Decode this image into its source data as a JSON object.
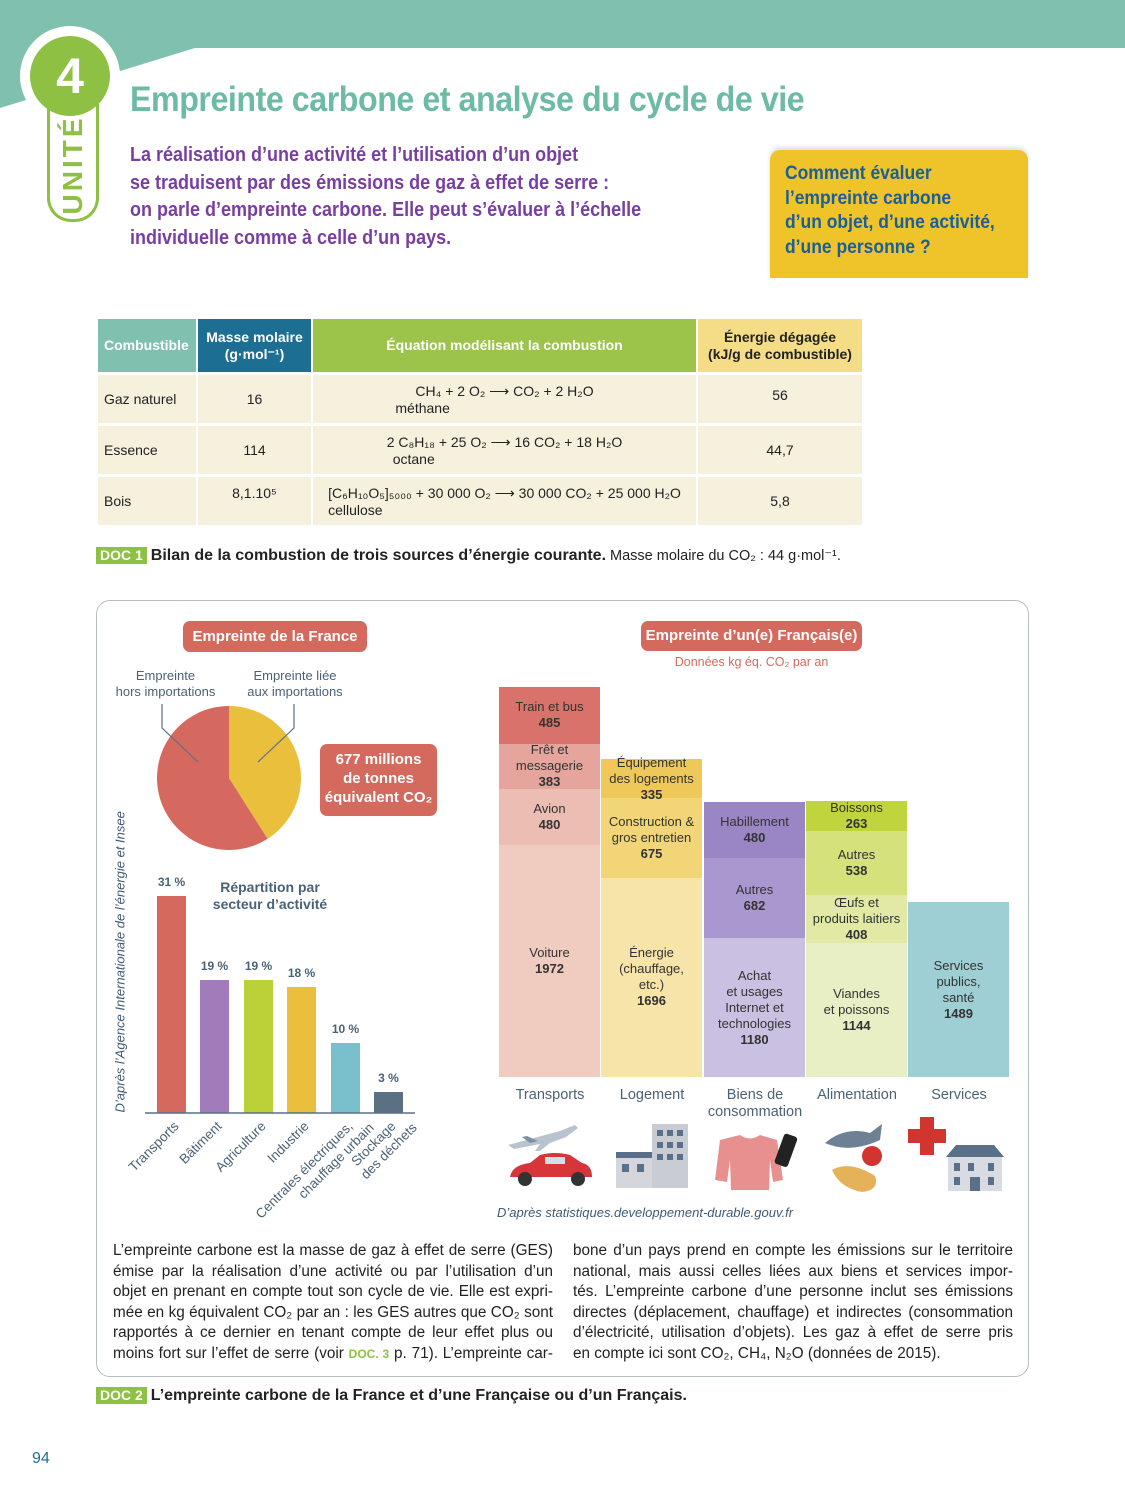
{
  "header": {
    "unit_number": "4",
    "unit_label": "UNITÉ",
    "title": "Empreinte carbone et analyse du cycle de vie",
    "intro_lines": [
      "La réalisation d’une activité et l’utilisation d’un objet",
      "se traduisent par des émissions de gaz à effet de serre :",
      "on parle d’empreinte carbone. Elle peut s’évaluer à l’échelle",
      "individuelle comme à celle d’un pays."
    ],
    "question_lines": [
      "Comment évaluer",
      "l’empreinte carbone",
      "d’un objet, d’une activité,",
      "d’une personne ?"
    ]
  },
  "doc1": {
    "headers": [
      "Combustible",
      "Masse molaire\n(g·mol⁻¹)",
      "Équation modélisant la combustion",
      "Énergie dégagée\n(kJ/g de combustible)"
    ],
    "header_colors": [
      "#80c0ae",
      "#1d6e93",
      "#9cc44a",
      "#f4dd86"
    ],
    "rows": [
      {
        "fuel": "Gaz naturel",
        "mass": "16",
        "equation": "CH₄ + 2 O₂ ⟶ CO₂ + 2 H₂O",
        "name": "méthane",
        "energy": "56"
      },
      {
        "fuel": "Essence",
        "mass": "114",
        "equation": "2 C₈H₁₈ + 25 O₂ ⟶ 16 CO₂ + 18 H₂O",
        "name": "octane",
        "energy": "44,7"
      },
      {
        "fuel": "Bois",
        "mass": "8,1.10⁵",
        "equation": "[C₆H₁₀O₅]₅₀₀₀ + 30 000 O₂ ⟶ 30 000 CO₂ + 25 000 H₂O",
        "name": "cellulose",
        "energy": "5,8"
      }
    ],
    "tag": "DOC 1",
    "caption_bold": "Bilan de la combustion de trois sources d’énergie courante.",
    "caption_rest": " Masse molaire du CO₂ : 44 g·mol⁻¹."
  },
  "doc2": {
    "france": {
      "title": "Empreinte de la France",
      "label_domestic": "Empreinte\nhors importations",
      "label_imports": "Empreinte liée\naux importations",
      "total": "677 millions\nde tonnes\néquivalent CO₂",
      "source": "D’après l’Agence Internationale de l’énergie et Insee"
    },
    "person": {
      "title": "Empreinte d’un(e) Français(e)",
      "subtitle": "Données kg éq. CO₂ par an",
      "source": "D’après statistiques.developpement-durable.gouv.fr"
    },
    "text_col1": [
      "L’empreinte carbone est la masse de gaz à effet de serre (GES)",
      "émise par la réalisation d’une activité ou par l’utilisation d’un",
      "objet en prenant en compte tout son cycle de vie. Elle est expri-",
      "mée en kg équivalent CO₂ par an : les GES autres que CO₂ sont",
      "rapportés à ce dernier en tenant compte de leur effet plus ou"
    ],
    "text_col1_last": {
      "before": "moins fort sur l’effet de serre (voir ",
      "link": "DOC. 3",
      "after": " p. 71). L’empreinte car-"
    },
    "text_col2": [
      "bone d’un pays prend en compte les émissions sur le territoire",
      "national, mais aussi celles liées aux biens et services impor-",
      "tés. L’empreinte carbone d’une personne inclut ses émissions",
      "directes (déplacement, chauffage) et indirectes (consommation",
      "d’électricité, utilisation d’objets). Les gaz à effet de serre pris",
      "en compte ici sont CO₂, CH₄, N₂O (données de 2015)."
    ],
    "tag": "DOC 2",
    "caption": "L’empreinte carbone de la France et d’une Française ou d’un Français."
  },
  "page_number": "94",
  "colors": {
    "teal": "#80c0ae",
    "green": "#8dc043",
    "purple": "#7a3ea3",
    "coral": "#d46a5e",
    "yellow": "#eec42a",
    "blue": "#1b5e98"
  },
  "chart_data": [
    {
      "type": "pie",
      "title": "Empreinte de la France",
      "slices": [
        {
          "name": "Empreinte hors importations",
          "value": 0.59,
          "color": "#d6695f"
        },
        {
          "name": "Empreinte liée aux importations",
          "value": 0.41,
          "color": "#e9bf3c"
        }
      ]
    },
    {
      "type": "bar",
      "title": "Répartition par secteur d’activité",
      "categories": [
        "Transports",
        "Bâtiment",
        "Agriculture",
        "Industrie",
        "Centrales électriques,\nchauffage urbain",
        "Stockage\ndes déchets"
      ],
      "values": [
        31,
        19,
        19,
        18,
        10,
        3
      ],
      "labels": [
        "31 %",
        "19 %",
        "19 %",
        "18 %",
        "10 %",
        "3 %"
      ],
      "colors": [
        "#d6695f",
        "#a27bbb",
        "#bcd137",
        "#eabf3d",
        "#79c0cc",
        "#5b7183"
      ],
      "unit": "%"
    },
    {
      "type": "stacked-bar",
      "unit": "kg éq. CO₂ par an",
      "categories": [
        {
          "name": "Transports",
          "segments": [
            {
              "label": "Voiture",
              "value": 1972,
              "color": "#f0cbc0"
            },
            {
              "label": "Avion",
              "value": 480,
              "color": "#ecbdb3"
            },
            {
              "label": "Frêt et\nmessagerie",
              "value": 383,
              "color": "#e5a49c"
            },
            {
              "label": "Train et bus",
              "value": 485,
              "color": "#d9726b"
            }
          ]
        },
        {
          "name": "Logement",
          "segments": [
            {
              "label": "Énergie\n(chauffage,\netc.)",
              "value": 1696,
              "color": "#f6e4a9"
            },
            {
              "label": "Construction &\ngros entretien",
              "value": 675,
              "color": "#f2d577"
            },
            {
              "label": "Équipement\ndes logements",
              "value": 335,
              "color": "#eec95a"
            }
          ]
        },
        {
          "name": "Biens de\nconsommation",
          "segments": [
            {
              "label": "Achat\net usages\nInternet et\ntechnologies",
              "value": 1180,
              "color": "#cac0e2"
            },
            {
              "label": "Autres",
              "value": 682,
              "color": "#a998cf"
            },
            {
              "label": "Habillement",
              "value": 480,
              "color": "#9a86c4"
            }
          ]
        },
        {
          "name": "Alimentation",
          "segments": [
            {
              "label": "Viandes\net poissons",
              "value": 1144,
              "color": "#e9efc5"
            },
            {
              "label": "Œufs et\nproduits laitiers",
              "value": 408,
              "color": "#e1e9a5"
            },
            {
              "label": "Autres",
              "value": 538,
              "color": "#d5e17b"
            },
            {
              "label": "Boissons",
              "value": 263,
              "color": "#c0d43d"
            }
          ]
        },
        {
          "name": "Services",
          "segments": [
            {
              "label": "Services\npublics,\nsanté",
              "value": 1489,
              "color": "#9ecfd5"
            }
          ]
        }
      ]
    }
  ]
}
